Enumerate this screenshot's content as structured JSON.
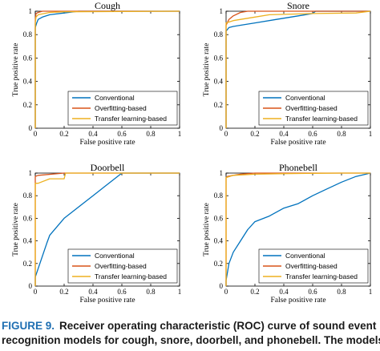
{
  "caption": {
    "label": "FIGURE 9.",
    "line1": "Receiver operating characteristic (ROC) curve of sound event",
    "line2": "recognition models for cough, snore, doorbell, and phonebell. The models"
  },
  "colors": {
    "Conventional": "#0072BD",
    "Overfitting-based": "#D95319",
    "Transfer learning-based": "#EDB120"
  },
  "chart_data": [
    {
      "type": "line",
      "title": "Cough",
      "xlabel": "False positive rate",
      "ylabel": "True positive rate",
      "xlim": [
        0,
        1
      ],
      "ylim": [
        0,
        1
      ],
      "xticks": [
        "0",
        "0.2",
        "0.4",
        "0.6",
        "0.8",
        "1"
      ],
      "yticks": [
        "0",
        "0.2",
        "0.4",
        "0.6",
        "0.8",
        "1"
      ],
      "legend_position": "bottom-right",
      "series": [
        {
          "name": "Conventional",
          "x": [
            0,
            0,
            0.01,
            0.02,
            0.05,
            0.1,
            0.2,
            0.3,
            1
          ],
          "y": [
            0,
            0.86,
            0.9,
            0.93,
            0.95,
            0.97,
            0.985,
            1,
            1
          ]
        },
        {
          "name": "Overfitting-based",
          "x": [
            0,
            0,
            0.005,
            0.02,
            0.05,
            1
          ],
          "y": [
            0,
            0.92,
            0.98,
            0.99,
            1,
            1
          ]
        },
        {
          "name": "Transfer learning-based",
          "x": [
            0,
            0,
            0.005,
            0.02,
            0.1,
            0.2,
            1
          ],
          "y": [
            0,
            0.9,
            0.95,
            0.97,
            0.99,
            0.995,
            1
          ]
        }
      ]
    },
    {
      "type": "line",
      "title": "Snore",
      "xlabel": "False positive rate",
      "ylabel": "True positive rate",
      "xlim": [
        0,
        1
      ],
      "ylim": [
        0,
        1
      ],
      "xticks": [
        "0",
        "0.2",
        "0.4",
        "0.6",
        "0.8",
        "1"
      ],
      "yticks": [
        "0",
        "0.2",
        "0.4",
        "0.6",
        "0.8",
        "1"
      ],
      "legend_position": "bottom-right",
      "series": [
        {
          "name": "Conventional",
          "x": [
            0,
            0,
            0.02,
            0.05,
            0.1,
            0.2,
            0.35,
            0.5,
            0.6,
            0.62,
            1
          ],
          "y": [
            0,
            0.83,
            0.86,
            0.87,
            0.88,
            0.9,
            0.93,
            0.96,
            0.98,
            1,
            1
          ]
        },
        {
          "name": "Overfitting-based",
          "x": [
            0,
            0,
            0.02,
            0.05,
            0.1,
            0.15,
            1
          ],
          "y": [
            0,
            0.88,
            0.93,
            0.96,
            0.99,
            1,
            1
          ]
        },
        {
          "name": "Transfer learning-based",
          "x": [
            0,
            0,
            0.05,
            0.2,
            0.3,
            0.6,
            0.9,
            1
          ],
          "y": [
            0,
            0.9,
            0.92,
            0.95,
            0.97,
            0.98,
            0.985,
            1
          ]
        }
      ]
    },
    {
      "type": "line",
      "title": "Doorbell",
      "xlabel": "False positive rate",
      "ylabel": "True positive rate",
      "xlim": [
        0,
        1
      ],
      "ylim": [
        0,
        1
      ],
      "xticks": [
        "0",
        "0.2",
        "0.4",
        "0.6",
        "0.8",
        "1"
      ],
      "yticks": [
        "0",
        "0.2",
        "0.4",
        "0.6",
        "0.8",
        "1"
      ],
      "legend_position": "bottom-right",
      "series": [
        {
          "name": "Conventional",
          "x": [
            0,
            0,
            0.08,
            0.1,
            0.2,
            0.4,
            0.6,
            1
          ],
          "y": [
            0,
            0.08,
            0.38,
            0.45,
            0.6,
            0.8,
            1,
            1
          ]
        },
        {
          "name": "Overfitting-based",
          "x": [
            0,
            0,
            0.02,
            0.2,
            1
          ],
          "y": [
            0,
            0.97,
            0.98,
            1,
            1
          ]
        },
        {
          "name": "Transfer learning-based",
          "x": [
            0,
            0,
            0.02,
            0.1,
            0.2,
            0.21,
            1
          ],
          "y": [
            0,
            0.91,
            0.91,
            0.95,
            0.95,
            1,
            1
          ]
        }
      ]
    },
    {
      "type": "line",
      "title": "Phonebell",
      "xlabel": "False positive rate",
      "ylabel": "True positive rate",
      "xlim": [
        0,
        1
      ],
      "ylim": [
        0,
        1
      ],
      "xticks": [
        "0",
        "0.2",
        "0.4",
        "0.6",
        "0.8",
        "1"
      ],
      "yticks": [
        "0",
        "0.2",
        "0.4",
        "0.6",
        "0.8",
        "1"
      ],
      "legend_position": "bottom-right",
      "series": [
        {
          "name": "Conventional",
          "x": [
            0,
            0,
            0.02,
            0.05,
            0.1,
            0.15,
            0.2,
            0.3,
            0.4,
            0.5,
            0.6,
            0.7,
            0.8,
            0.9,
            1
          ],
          "y": [
            0,
            0.05,
            0.2,
            0.3,
            0.4,
            0.5,
            0.57,
            0.62,
            0.69,
            0.73,
            0.8,
            0.86,
            0.92,
            0.97,
            1
          ]
        },
        {
          "name": "Overfitting-based",
          "x": [
            0,
            0,
            0.01,
            0.05,
            0.1,
            0.2,
            1
          ],
          "y": [
            0,
            0.96,
            0.97,
            0.98,
            0.99,
            1,
            1
          ]
        },
        {
          "name": "Transfer learning-based",
          "x": [
            0,
            0,
            0.05,
            0.2,
            0.4,
            0.6,
            0.8,
            1
          ],
          "y": [
            0,
            0.96,
            0.98,
            0.99,
            0.995,
            0.998,
            1,
            1
          ]
        }
      ]
    }
  ]
}
